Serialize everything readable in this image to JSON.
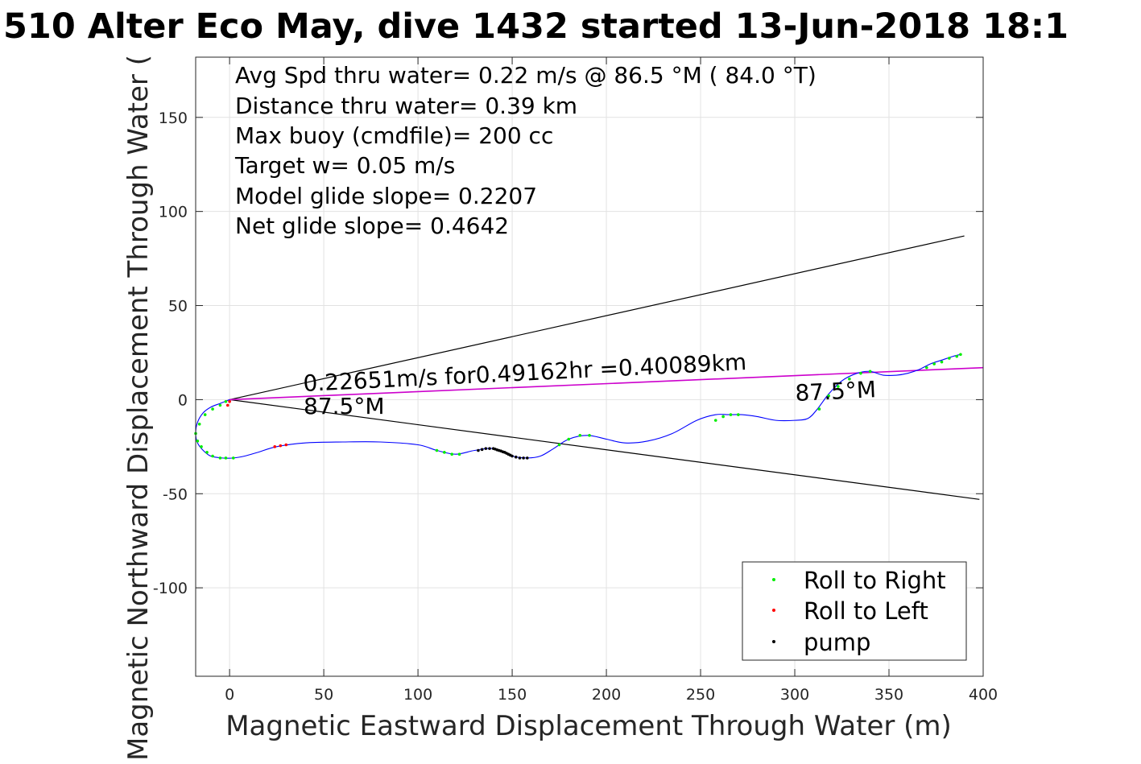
{
  "chart_data": {
    "type": "scatter",
    "title": "510 Alter Eco May, dive 1432 started 13-Jun-2018 18:1",
    "xlabel": "Magnetic Eastward Displacement Through Water (m)",
    "ylabel": "Magnetic Northward Displacement Through Water (",
    "xlim": [
      -18,
      400
    ],
    "ylim": [
      -147,
      182
    ],
    "xticks": [
      "0",
      "50",
      "100",
      "150",
      "200",
      "250",
      "300",
      "350",
      "400"
    ],
    "yticks": [
      "-100",
      "-50",
      "0",
      "50",
      "100",
      "150"
    ],
    "grid": true,
    "legend_position": "bottom-right",
    "stats": [
      "Avg Spd thru water=  0.22 m/s @  86.5 °M ( 84.0 °T)",
      "Distance thru water=  0.39 km",
      "Max buoy (cmdfile)= 200 cc",
      "Target w= 0.05 m/s",
      "Model glide slope= 0.2207",
      "Net glide slope= 0.4642"
    ],
    "annotations": {
      "speed": "0.22651m/s for0.49162hr =0.40089km",
      "heading_start": "87.5°M",
      "heading_end": "87.5°M"
    },
    "colors": {
      "track": "#0000ff",
      "mean_line": "#cc00cc",
      "cone": "#000000",
      "roll_right": "#00ee00",
      "roll_left": "#ff0000",
      "pump": "#000000",
      "grid": "#e2e2e2"
    },
    "cone_lines": [
      {
        "x": [
          0,
          390
        ],
        "y": [
          0,
          87
        ]
      },
      {
        "x": [
          0,
          398
        ],
        "y": [
          0,
          -53
        ]
      }
    ],
    "mean_line": {
      "x": [
        0,
        400
      ],
      "y": [
        0,
        17
      ]
    },
    "track": {
      "x": [
        0,
        -5,
        -10,
        -14,
        -17,
        -18,
        -17,
        -14,
        -10,
        -4,
        2,
        8,
        15,
        25,
        40,
        60,
        80,
        100,
        110,
        120,
        130,
        140,
        150,
        158,
        165,
        172,
        180,
        190,
        200,
        210,
        222,
        235,
        248,
        258,
        265,
        272,
        280,
        290,
        300,
        307,
        312,
        318,
        325,
        333,
        340,
        347,
        354,
        360,
        366,
        372,
        378,
        384,
        388
      ],
      "y": [
        0,
        -2,
        -4,
        -7,
        -12,
        -18,
        -23,
        -27,
        -30,
        -31,
        -31,
        -30,
        -28,
        -25,
        -23,
        -22.5,
        -22.5,
        -24,
        -27,
        -29,
        -27,
        -26,
        -30,
        -31,
        -30,
        -26,
        -21,
        -19,
        -21,
        -23,
        -22,
        -18,
        -11,
        -8,
        -8,
        -8,
        -9,
        -11,
        -11,
        -10,
        -5,
        3,
        10,
        14,
        15,
        13,
        13,
        14,
        16,
        19,
        21,
        23,
        24
      ]
    },
    "series": [
      {
        "name": "Roll to Right",
        "x": [
          -2,
          -5,
          -9,
          -13,
          -16,
          -18,
          -17,
          -15,
          -12,
          -9,
          -5,
          -2,
          2,
          110,
          114,
          118,
          122,
          175,
          180,
          186,
          191,
          258,
          262,
          266,
          270,
          313,
          318,
          323,
          329,
          335,
          340,
          370,
          374,
          378,
          382,
          386,
          388
        ],
        "y": [
          -1,
          -3,
          -5,
          -8,
          -13,
          -18,
          -22,
          -25,
          -28,
          -30,
          -31,
          -31,
          -31,
          -27,
          -28,
          -29,
          -29,
          -24,
          -21,
          -19,
          -19,
          -11,
          -9,
          -8,
          -8,
          -5,
          2,
          7,
          11,
          14,
          15,
          17,
          19,
          20,
          22,
          23,
          24
        ]
      },
      {
        "name": "Roll to Left",
        "x": [
          -1,
          0,
          24,
          27,
          30
        ],
        "y": [
          -3,
          -1,
          -25,
          -24.5,
          -24
        ],
        "style": "red-magenta"
      },
      {
        "name": "pump",
        "x": [
          132,
          134,
          136,
          138,
          140,
          141,
          142,
          143,
          144,
          145,
          146,
          147,
          148,
          149,
          150,
          152,
          154,
          156,
          158
        ],
        "y": [
          -27,
          -26.5,
          -26,
          -26,
          -26,
          -26.3,
          -26.7,
          -27,
          -27.3,
          -27.7,
          -28,
          -28.5,
          -29,
          -29.5,
          -30,
          -30.5,
          -31,
          -31,
          -31
        ]
      }
    ]
  }
}
